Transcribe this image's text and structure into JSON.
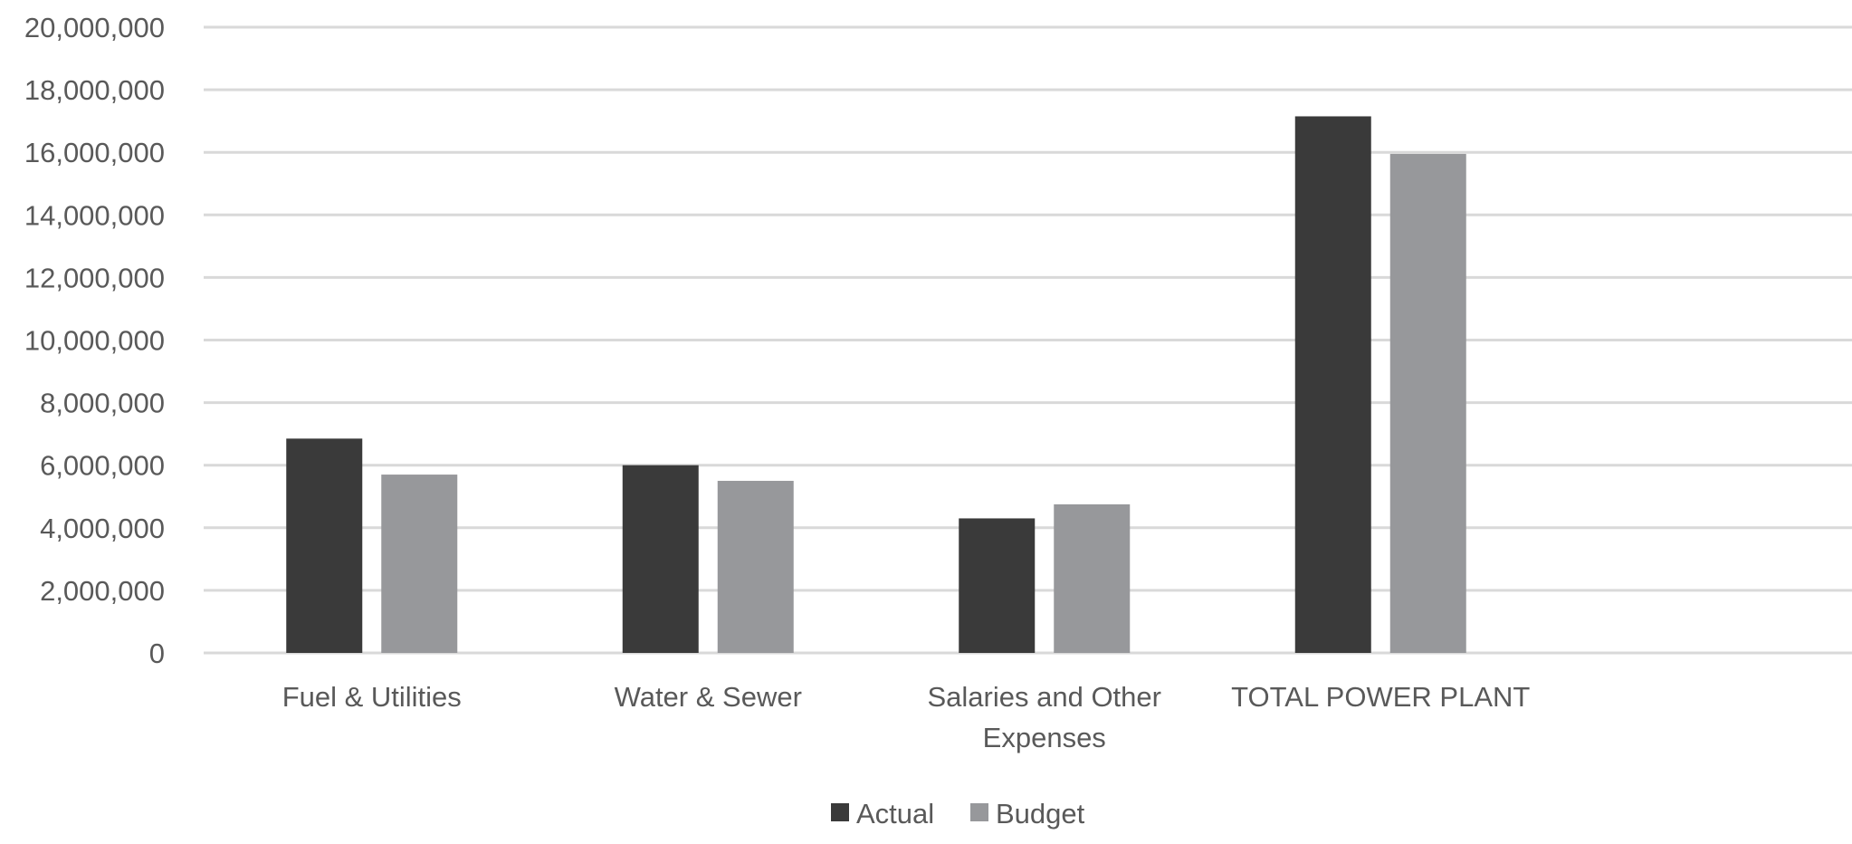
{
  "chart_data": {
    "type": "bar",
    "title": "",
    "xlabel": "",
    "ylabel": "",
    "ylim": [
      0,
      20000000
    ],
    "yticks": [
      0,
      2000000,
      4000000,
      6000000,
      8000000,
      10000000,
      12000000,
      14000000,
      16000000,
      18000000,
      20000000
    ],
    "ytick_labels": [
      "0",
      "2,000,000",
      "4,000,000",
      "6,000,000",
      "8,000,000",
      "10,000,000",
      "12,000,000",
      "14,000,000",
      "16,000,000",
      "18,000,000",
      "20,000,000"
    ],
    "categories": [
      "Fuel & Utilities",
      "Water & Sewer",
      "Salaries and Other Expenses",
      "TOTAL POWER PLANT"
    ],
    "category_lines": [
      [
        "Fuel & Utilities"
      ],
      [
        "Water & Sewer"
      ],
      [
        "Salaries and Other",
        "Expenses"
      ],
      [
        "TOTAL POWER PLANT"
      ]
    ],
    "series": [
      {
        "name": "Actual",
        "color": "#3a3a3a",
        "values": [
          6850000,
          6000000,
          4300000,
          17150000
        ]
      },
      {
        "name": "Budget",
        "color": "#97989b",
        "values": [
          5700000,
          5500000,
          4750000,
          15950000
        ]
      }
    ],
    "grid": true,
    "gridline_color": "#d9d9d9",
    "legend_position": "bottom"
  }
}
